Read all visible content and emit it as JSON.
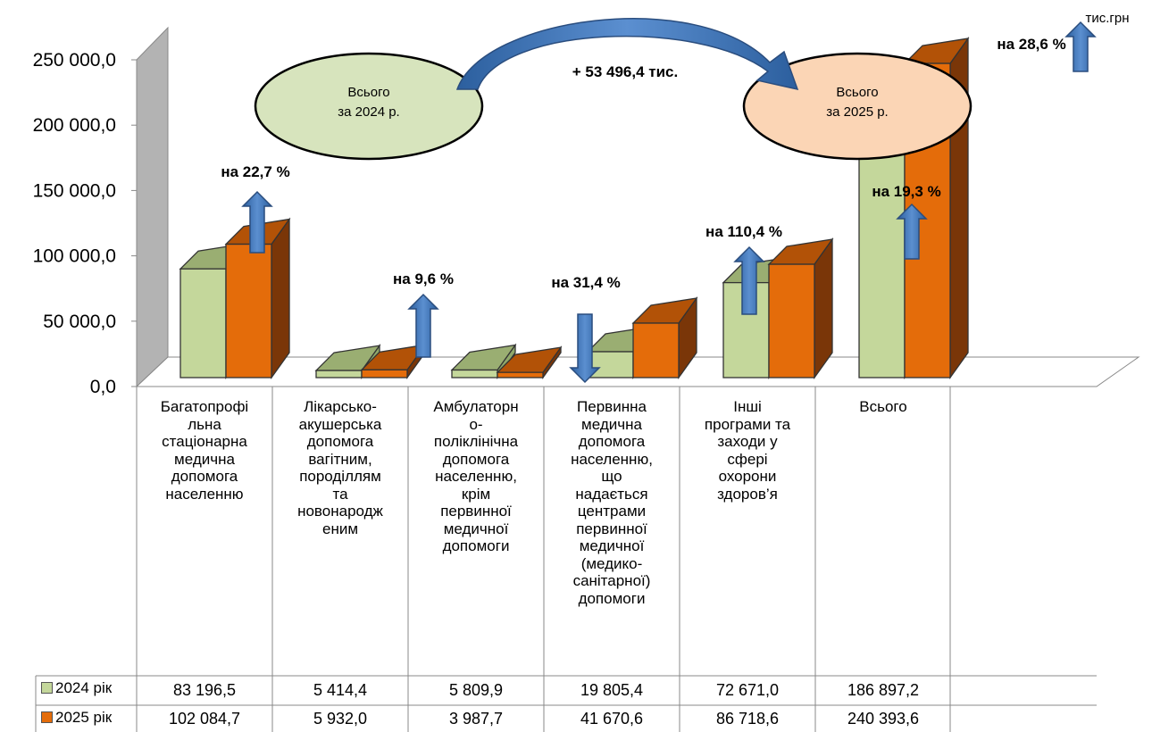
{
  "chart_data": {
    "type": "bar",
    "unit_label": "тис.грн",
    "ylim": [
      0,
      250000
    ],
    "y_ticks": [
      "0,0",
      "50 000,0",
      "100 000,0",
      "150 000,0",
      "200 000,0",
      "250 000,0"
    ],
    "categories": [
      "Багатопрофі льна стаціонарна медична допомога населенню",
      "Лікарсько-акушерська допомога вагітним, породіллям та новонародж еним",
      "Амбулаторн о-поліклінічна допомога населенню, крім первинної медичної допомоги",
      "Первинна медична допомога населенню, що надається центрами первинної медичної (медико-санітарної) допомоги",
      "Інші програми та заходи у сфері охорони здоров’я",
      "Всього"
    ],
    "category_lines": [
      [
        "Багатопрофі",
        "льна",
        "стаціонарна",
        "медична",
        "допомога",
        "населенню"
      ],
      [
        "Лікарсько-",
        "акушерська",
        "допомога",
        "вагітним,",
        "породіллям",
        "та",
        "новонародж",
        "еним"
      ],
      [
        "Амбулаторн",
        "о-",
        "поліклінічна",
        "допомога",
        "населенню,",
        "крім",
        "первинної",
        "медичної",
        "допомоги"
      ],
      [
        "Первинна",
        "медична",
        "допомога",
        "населенню,",
        "що",
        "надається",
        "центрами",
        "первинної",
        "медичної",
        "(медико-",
        "санітарної)",
        "допомоги"
      ],
      [
        "Інші",
        "програми та",
        "заходи у",
        "сфері",
        "охорони",
        "здоров’я"
      ],
      [
        "Всього"
      ]
    ],
    "series": [
      {
        "name": "2024 рік",
        "color": "#c4d79b",
        "values": [
          83196.5,
          5414.4,
          5809.9,
          19805.4,
          72671.0,
          186897.2
        ],
        "labels": [
          "83 196,5",
          "5 414,4",
          "5 809,9",
          "19 805,4",
          "72 671,0",
          "186 897,2"
        ]
      },
      {
        "name": "2025 рік",
        "color": "#e46c0a",
        "values": [
          102084.7,
          5932.0,
          3987.7,
          41670.6,
          86718.6,
          240393.6
        ],
        "labels": [
          "102 084,7",
          "5 932,0",
          "3 987,7",
          "41 670,6",
          "86 718,6",
          "240 393,6"
        ]
      }
    ],
    "annotations": {
      "changes": [
        {
          "text": "на 22,7 %",
          "direction": "up"
        },
        {
          "text": "на 9,6 %",
          "direction": "up"
        },
        {
          "text": "на 31,4 %",
          "direction": "down"
        },
        {
          "text": "на 110,4 %",
          "direction": "up"
        },
        {
          "text": "на 19,3 %",
          "direction": "up"
        },
        {
          "text": "на 28,6 %",
          "direction": "up"
        }
      ],
      "total_change": "+ 53 496,4 тис.",
      "ellipse_left": {
        "line1": "Всього",
        "line2": "за 2024 р.",
        "color": "#d7e4bd"
      },
      "ellipse_right": {
        "line1": "Всього",
        "line2": "за 2025 р.",
        "color": "#fbd5b5"
      }
    }
  }
}
